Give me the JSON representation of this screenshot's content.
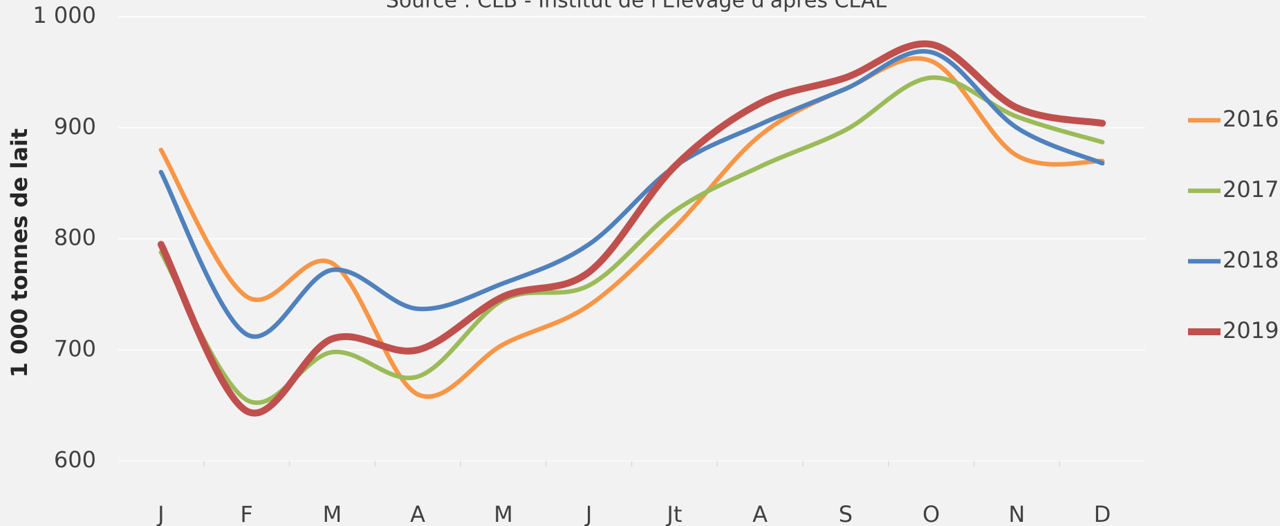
{
  "chart_data": {
    "type": "line",
    "subtitle": "Source : CLB - Institut de l'Elevage d'après CLAL",
    "y_label": "1 000 tonnes de lait",
    "categories": [
      "J",
      "F",
      "M",
      "A",
      "M",
      "J",
      "Jt",
      "A",
      "S",
      "O",
      "N",
      "D"
    ],
    "series": [
      {
        "name": "2016",
        "color": "#f79646",
        "values": [
          880,
          748,
          778,
          660,
          705,
          740,
          810,
          893,
          935,
          960,
          875,
          870
        ]
      },
      {
        "name": "2017",
        "color": "#9bbb59",
        "values": [
          788,
          655,
          698,
          676,
          745,
          758,
          825,
          865,
          898,
          945,
          910,
          887
        ]
      },
      {
        "name": "2018",
        "color": "#4f81bd",
        "values": [
          860,
          714,
          772,
          737,
          760,
          795,
          865,
          903,
          935,
          968,
          900,
          868
        ]
      },
      {
        "name": "2019",
        "color": "#c0504d",
        "values": [
          795,
          645,
          710,
          700,
          748,
          770,
          865,
          922,
          945,
          975,
          918,
          904
        ]
      }
    ],
    "ylim": [
      600,
      1000
    ],
    "yticks": [
      600,
      700,
      800,
      900,
      {
        "value": 1000,
        "label": "1 000"
      }
    ],
    "grid": true,
    "legend": "right"
  }
}
